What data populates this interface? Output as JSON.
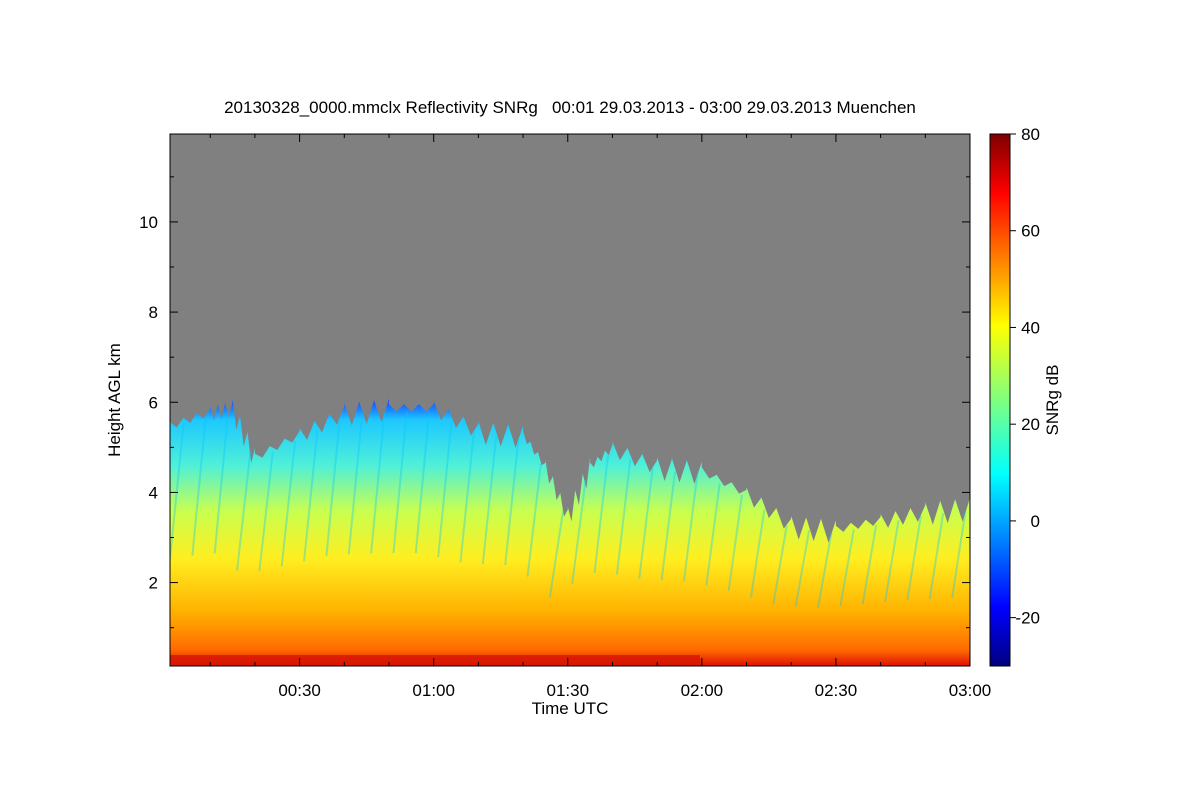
{
  "chart_data": {
    "type": "heatmap",
    "title": "20130328_0000.mmclx Reflectivity SNRg   00:01 29.03.2013 - 03:00 29.03.2013 Muenchen",
    "xlabel": "Time UTC",
    "ylabel": "Height AGL km",
    "colorbar_label": "SNRg dB",
    "x_ticks": [
      "00:30",
      "01:00",
      "01:30",
      "02:00",
      "02:30",
      "03:00"
    ],
    "x_tick_minutes": [
      30,
      60,
      90,
      120,
      150,
      180
    ],
    "xlim_minutes": [
      1,
      180
    ],
    "y_ticks": [
      2,
      4,
      6,
      8,
      10
    ],
    "ylim": [
      0.15,
      11.95
    ],
    "colorbar_ticks": [
      80,
      60,
      40,
      20,
      0,
      -20
    ],
    "colorbar_range": [
      -30,
      80
    ],
    "colormap": "jet",
    "no_signal_color": "#808080",
    "cloud_top_km": [
      {
        "minute": 1,
        "top": 5.5
      },
      {
        "minute": 10,
        "top": 5.8
      },
      {
        "minute": 15,
        "top": 5.9
      },
      {
        "minute": 20,
        "top": 4.8
      },
      {
        "minute": 30,
        "top": 5.3
      },
      {
        "minute": 40,
        "top": 5.8
      },
      {
        "minute": 50,
        "top": 5.9
      },
      {
        "minute": 60,
        "top": 5.9
      },
      {
        "minute": 70,
        "top": 5.4
      },
      {
        "minute": 80,
        "top": 5.3
      },
      {
        "minute": 85,
        "top": 4.6
      },
      {
        "minute": 90,
        "top": 3.5
      },
      {
        "minute": 95,
        "top": 4.6
      },
      {
        "minute": 100,
        "top": 5.0
      },
      {
        "minute": 110,
        "top": 4.6
      },
      {
        "minute": 120,
        "top": 4.5
      },
      {
        "minute": 130,
        "top": 4.0
      },
      {
        "minute": 140,
        "top": 3.3
      },
      {
        "minute": 150,
        "top": 3.2
      },
      {
        "minute": 160,
        "top": 3.4
      },
      {
        "minute": 170,
        "top": 3.6
      },
      {
        "minute": 180,
        "top": 3.7
      }
    ]
  }
}
